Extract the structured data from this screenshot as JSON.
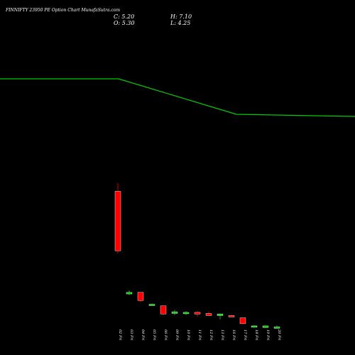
{
  "header": {
    "title": "FINNIFTY 23950 PE Option Chart MunafaSutra.com",
    "close_label": "C: 5.20",
    "open_label": "O: 5.30",
    "high_label": "H: 7.10",
    "low_label": "L: 4.25"
  },
  "chart_data": {
    "type": "candlestick",
    "title": "FINNIFTY 23950 PE Option Chart MunafaSutra.com",
    "categories": [
      "02 Fri",
      "03 Fri",
      "04 Fri",
      "05 Fri",
      "06 Fri",
      "09 Fri",
      "10 Fri",
      "11 Fri",
      "12 Fri",
      "13 Fri",
      "16 Fri",
      "17 Fri",
      "18 Fri",
      "19 Fri",
      "20 Fri"
    ],
    "candles": [
      {
        "open": 240,
        "high": 255,
        "low": 125,
        "close": 130
      },
      {
        "open": 50,
        "high": 57,
        "low": 48,
        "close": 53
      },
      {
        "open": 53,
        "high": 53,
        "low": 35,
        "close": 38
      },
      {
        "open": 31,
        "high": 32,
        "low": 30,
        "close": 31
      },
      {
        "open": 28,
        "high": 28,
        "low": 11,
        "close": 13
      },
      {
        "open": 14,
        "high": 21,
        "low": 11,
        "close": 17
      },
      {
        "open": 14,
        "high": 18,
        "low": 11,
        "close": 16
      },
      {
        "open": 16,
        "high": 18,
        "low": 8,
        "close": 13
      },
      {
        "open": 14,
        "high": 17,
        "low": 10,
        "close": 10
      },
      {
        "open": 10,
        "high": 14,
        "low": 3,
        "close": 13
      },
      {
        "open": 10,
        "high": 11,
        "low": 7,
        "close": 8
      },
      {
        "open": 6,
        "high": 6,
        "low": -6,
        "close": -5
      },
      {
        "open": -9,
        "high": -8,
        "low": -12,
        "close": -9
      },
      {
        "open": -12,
        "high": -8,
        "low": -13,
        "close": -9
      },
      {
        "open": -11,
        "high": -8,
        "low": -12,
        "close": -11
      }
    ],
    "overlay_line": [
      {
        "x": 0,
        "y": 0.778
      },
      {
        "x": 0.334,
        "y": 0.778
      },
      {
        "x": 0.666,
        "y": 0.678
      },
      {
        "x": 1.0,
        "y": 0.672
      }
    ],
    "colors": {
      "bull": "#00cc00",
      "bear": "#ff0000",
      "line": "#00cc00",
      "background": "#000000",
      "text": "#ffffff"
    }
  }
}
